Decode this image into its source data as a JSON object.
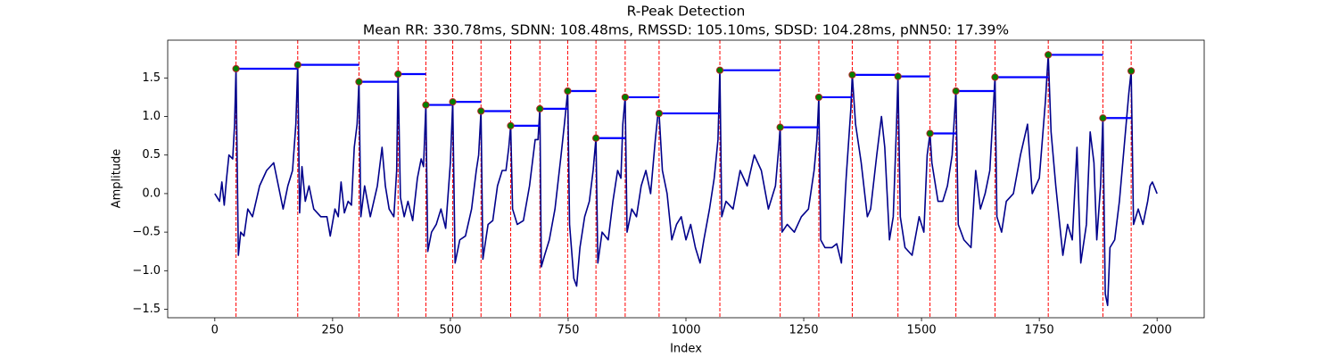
{
  "chart_data": {
    "type": "line",
    "title": "R-Peak Detection",
    "subtitle": "Mean RR: 330.78ms, SDNN: 108.48ms, RMSSD: 105.10ms, SDSD: 104.28ms, pNN50: 17.39%",
    "x_label": "Index",
    "y_label": "Amplitude",
    "xlim": [
      -100,
      2100
    ],
    "ylim": [
      -1.61,
      1.99
    ],
    "xticks": [
      0,
      250,
      500,
      750,
      1000,
      1250,
      1500,
      1750,
      2000
    ],
    "yticks": [
      {
        "value": -1.5,
        "label": "−1.5"
      },
      {
        "value": -1.0,
        "label": "−1.0"
      },
      {
        "value": -0.5,
        "label": "−0.5"
      },
      {
        "value": 0,
        "label": "0.0"
      },
      0.5,
      {
        "value": 1.0,
        "label": "1.0"
      },
      1.5
    ],
    "series": [
      {
        "color": "#00008b",
        "x": [
          0,
          10,
          15,
          20,
          25,
          30,
          38,
          42,
          45,
          50,
          55,
          62,
          70,
          80,
          95,
          110,
          125,
          135,
          145,
          155,
          165,
          172,
          176,
          180,
          185,
          192,
          200,
          210,
          225,
          238,
          245,
          255,
          262,
          268,
          275,
          283,
          290,
          296,
          302,
          306,
          310,
          318,
          330,
          345,
          355,
          362,
          370,
          380,
          386,
          389,
          394,
          402,
          410,
          420,
          430,
          438,
          443,
          448,
          452,
          460,
          470,
          480,
          490,
          500,
          505,
          510,
          520,
          532,
          545,
          555,
          560,
          565,
          569,
          580,
          590,
          600,
          610,
          618,
          624,
          628,
          632,
          642,
          655,
          668,
          680,
          686,
          690,
          693,
          700,
          710,
          722,
          735,
          742,
          749,
          753,
          762,
          768,
          775,
          785,
          795,
          803,
          809,
          813,
          822,
          835,
          845,
          855,
          862,
          866,
          871,
          875,
          885,
          895,
          905,
          915,
          925,
          935,
          940,
          943,
          950,
          960,
          970,
          980,
          990,
          1000,
          1010,
          1020,
          1030,
          1038,
          1050,
          1060,
          1068,
          1072,
          1076,
          1085,
          1100,
          1115,
          1130,
          1145,
          1160,
          1175,
          1190,
          1197,
          1200,
          1204,
          1215,
          1230,
          1245,
          1260,
          1272,
          1278,
          1282,
          1286,
          1295,
          1310,
          1320,
          1330,
          1340,
          1350,
          1353,
          1360,
          1372,
          1385,
          1392,
          1405,
          1415,
          1422,
          1432,
          1440,
          1447,
          1450,
          1455,
          1465,
          1480,
          1495,
          1505,
          1512,
          1518,
          1522,
          1535,
          1545,
          1555,
          1565,
          1573,
          1578,
          1590,
          1605,
          1615,
          1625,
          1635,
          1645,
          1656,
          1660,
          1670,
          1680,
          1695,
          1710,
          1725,
          1735,
          1750,
          1763,
          1769,
          1775,
          1785,
          1800,
          1810,
          1820,
          1830,
          1838,
          1850,
          1858,
          1866,
          1872,
          1880,
          1885,
          1890,
          1895,
          1900,
          1910,
          1920,
          1930,
          1940,
          1945,
          1950,
          1960,
          1970,
          1980,
          1985,
          1990,
          2000
        ],
        "values": [
          0.0,
          -0.1,
          0.15,
          -0.15,
          0.2,
          0.5,
          0.45,
          0.9,
          1.62,
          -0.8,
          -0.5,
          -0.55,
          -0.2,
          -0.3,
          0.1,
          0.3,
          0.4,
          0.1,
          -0.2,
          0.1,
          0.3,
          0.9,
          1.67,
          -0.25,
          0.35,
          -0.1,
          0.1,
          -0.2,
          -0.3,
          -0.3,
          -0.55,
          -0.2,
          -0.3,
          0.15,
          -0.25,
          -0.1,
          -0.15,
          0.6,
          0.9,
          1.45,
          -0.3,
          0.1,
          -0.3,
          0.1,
          0.6,
          0.1,
          -0.2,
          -0.3,
          0.3,
          1.55,
          -0.05,
          -0.3,
          -0.1,
          -0.35,
          0.2,
          0.45,
          0.35,
          1.15,
          -0.75,
          -0.5,
          -0.4,
          -0.2,
          -0.45,
          0.4,
          1.19,
          -0.9,
          -0.6,
          -0.55,
          -0.2,
          0.3,
          0.5,
          1.07,
          -0.85,
          -0.4,
          -0.35,
          0.1,
          0.3,
          0.3,
          0.6,
          0.88,
          -0.2,
          -0.4,
          -0.35,
          0.1,
          0.7,
          0.7,
          1.1,
          -0.95,
          -0.8,
          -0.6,
          -0.2,
          0.5,
          0.9,
          1.33,
          -0.4,
          -1.1,
          -1.2,
          -0.7,
          -0.3,
          -0.1,
          0.3,
          0.72,
          -0.9,
          -0.5,
          -0.6,
          -0.1,
          0.3,
          0.2,
          0.9,
          1.25,
          -0.5,
          -0.2,
          -0.3,
          0.1,
          0.3,
          0.0,
          0.7,
          1.0,
          1.04,
          0.3,
          0.0,
          -0.6,
          -0.4,
          -0.3,
          -0.6,
          -0.4,
          -0.7,
          -0.9,
          -0.6,
          -0.2,
          0.2,
          0.7,
          1.6,
          -0.3,
          -0.1,
          -0.2,
          0.3,
          0.1,
          0.5,
          0.3,
          -0.2,
          0.1,
          0.6,
          0.86,
          -0.5,
          -0.4,
          -0.5,
          -0.3,
          -0.2,
          0.3,
          0.7,
          1.25,
          -0.6,
          -0.7,
          -0.7,
          -0.65,
          -0.9,
          0.2,
          1.1,
          1.54,
          0.9,
          0.4,
          -0.3,
          -0.2,
          0.5,
          1.0,
          0.6,
          -0.6,
          -0.3,
          0.9,
          1.52,
          -0.3,
          -0.7,
          -0.8,
          -0.3,
          -0.5,
          0.5,
          0.78,
          0.4,
          -0.1,
          -0.1,
          0.1,
          0.5,
          1.33,
          -0.4,
          -0.6,
          -0.7,
          0.3,
          -0.2,
          0.0,
          0.3,
          1.51,
          -0.3,
          -0.5,
          -0.1,
          0.0,
          0.5,
          0.9,
          0.0,
          0.2,
          1.2,
          1.8,
          0.8,
          0.1,
          -0.8,
          -0.4,
          -0.6,
          0.6,
          -0.9,
          -0.4,
          0.8,
          0.4,
          -0.6,
          0.1,
          0.98,
          -1.3,
          -1.45,
          -0.7,
          -0.6,
          -0.1,
          0.6,
          1.3,
          1.59,
          -0.4,
          -0.2,
          -0.4,
          -0.1,
          0.1,
          0.15,
          0.0
        ]
      }
    ],
    "peaks": {
      "color": "green",
      "edge_color": "#b22222",
      "line_color": "red",
      "interval_color": "blue",
      "x": [
        45,
        176,
        306,
        389,
        448,
        505,
        565,
        628,
        690,
        749,
        809,
        871,
        943,
        1072,
        1200,
        1282,
        1353,
        1450,
        1518,
        1573,
        1656,
        1769,
        1885,
        1945
      ],
      "values": [
        1.62,
        1.67,
        1.45,
        1.55,
        1.15,
        1.19,
        1.07,
        0.88,
        1.1,
        1.33,
        0.72,
        1.25,
        1.04,
        1.6,
        0.86,
        1.25,
        1.54,
        1.52,
        0.78,
        1.33,
        1.51,
        1.8,
        0.98,
        1.59
      ]
    }
  }
}
